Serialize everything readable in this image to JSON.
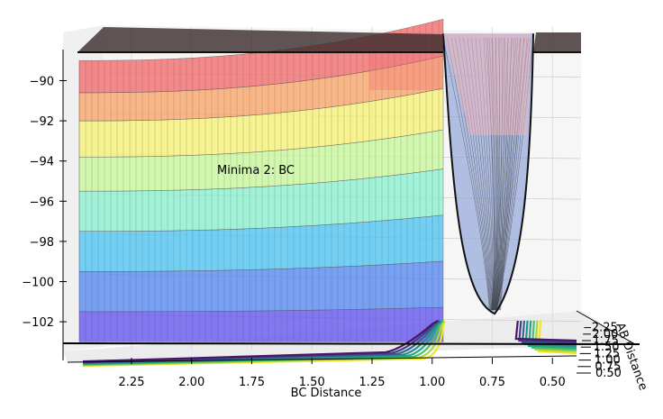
{
  "chart_data": {
    "type": "surface",
    "title": "",
    "xlabel": "BC Distance",
    "ylabel": "AB Distance",
    "zlabel": "",
    "x_ticks": [
      "2.25",
      "2.00",
      "1.75",
      "1.50",
      "1.25",
      "1.00",
      "0.75",
      "0.50"
    ],
    "y_ticks": [
      "0.50",
      "0.75",
      "1.00",
      "1.25",
      "1.50",
      "1.75",
      "2.00",
      "2.25"
    ],
    "z_ticks": [
      "−90",
      "−92",
      "−94",
      "−96",
      "−98",
      "−100",
      "−102"
    ],
    "x_range": [
      0.45,
      2.45
    ],
    "y_range": [
      0.45,
      2.45
    ],
    "z_range": [
      -103.5,
      -88.5
    ],
    "annotation": "Minima 2: BC",
    "minimum": {
      "bc_distance": 0.74,
      "z": -101.6
    },
    "plateau_z": -89.0,
    "bands": [
      {
        "z_min": -103.0,
        "z_max": -101.5,
        "color": "#6a5cf0"
      },
      {
        "z_min": -101.5,
        "z_max": -99.5,
        "color": "#5b8cf2"
      },
      {
        "z_min": -99.5,
        "z_max": -97.5,
        "color": "#55c6f2"
      },
      {
        "z_min": -97.5,
        "z_max": -95.5,
        "color": "#8ff0d2"
      },
      {
        "z_min": -95.5,
        "z_max": -93.8,
        "color": "#c8f89e"
      },
      {
        "z_min": -93.8,
        "z_max": -92.0,
        "color": "#f7f27a"
      },
      {
        "z_min": -92.0,
        "z_max": -90.6,
        "color": "#f9a86e"
      },
      {
        "z_min": -90.6,
        "z_max": -89.0,
        "color": "#f27070"
      }
    ],
    "grid": true,
    "colormap": "jet"
  }
}
